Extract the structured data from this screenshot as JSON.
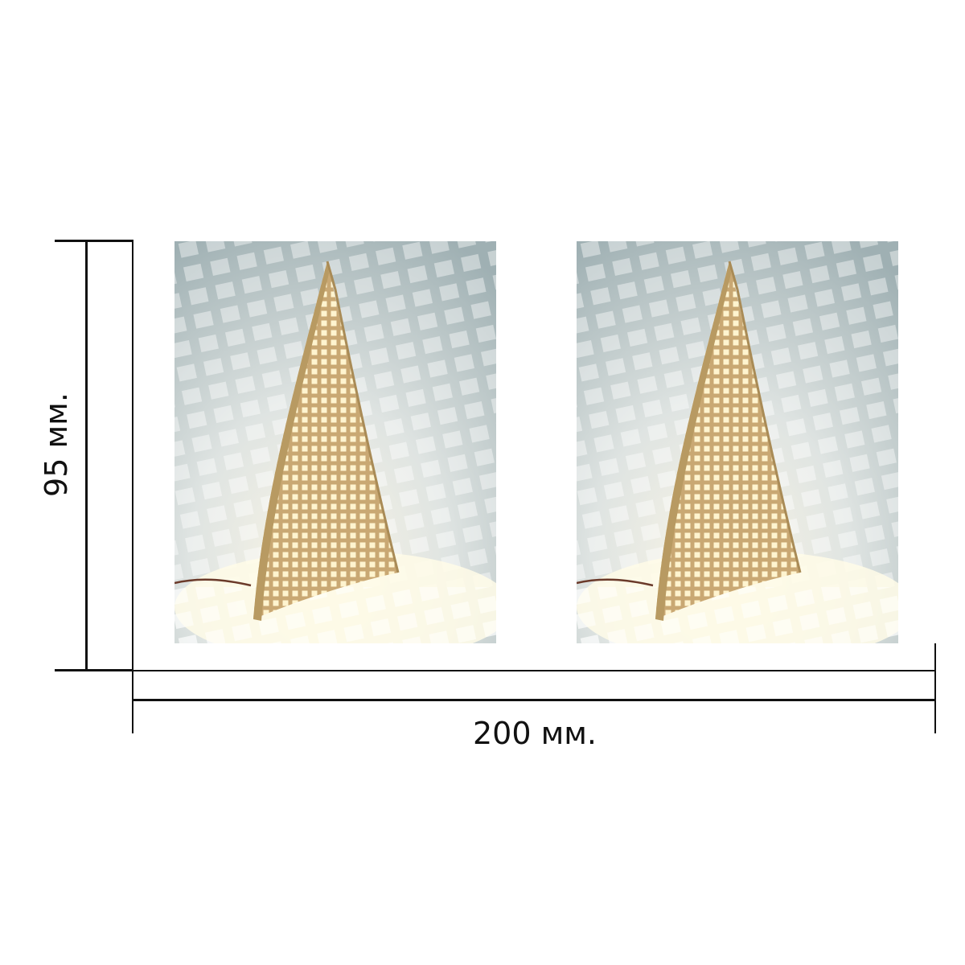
{
  "dimensions": {
    "width_label": "200 мм.",
    "height_label": "95 мм."
  },
  "photos": [
    {
      "subject": "lamp-photo-left"
    },
    {
      "subject": "lamp-photo-right"
    }
  ]
}
